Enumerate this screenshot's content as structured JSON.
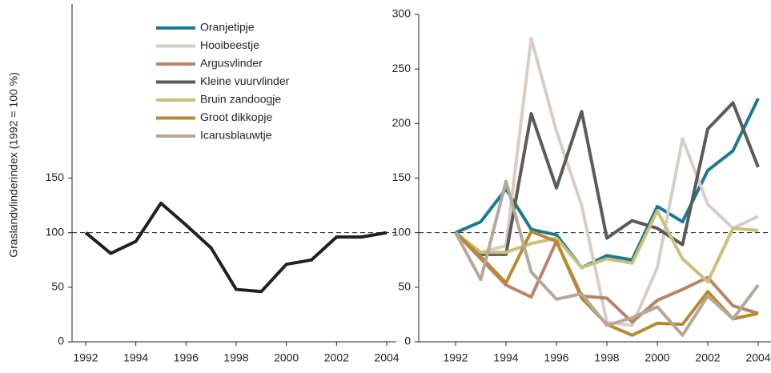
{
  "chart_data": [
    {
      "type": "line",
      "y_label": "Graslandvlinderindex (1992 = 100 %)",
      "x": [
        1992,
        1993,
        1994,
        1995,
        1996,
        1997,
        1998,
        1999,
        2000,
        2001,
        2002,
        2003,
        2004
      ],
      "series": [
        {
          "color": "#231f20",
          "values": [
            100,
            81,
            92,
            127,
            107,
            86,
            48,
            46,
            71,
            75,
            96,
            96,
            100
          ]
        }
      ],
      "xlim": [
        1992,
        2004
      ],
      "xticks": [
        1992,
        1994,
        1996,
        1998,
        2000,
        2002,
        2004
      ],
      "ylim": [
        0,
        300
      ],
      "yticks": [
        0,
        50,
        100,
        150
      ],
      "reference_line": 100
    },
    {
      "type": "line",
      "x": [
        1992,
        1993,
        1994,
        1995,
        1996,
        1997,
        1998,
        1999,
        2000,
        2001,
        2002,
        2003,
        2004
      ],
      "series": [
        {
          "name": "Oranjetipje",
          "color": "#1a7a93",
          "values": [
            100,
            110,
            140,
            103,
            98,
            68,
            79,
            75,
            124,
            110,
            157,
            175,
            223
          ]
        },
        {
          "name": "Hooibeestje",
          "color": "#d8ccc7",
          "values": [
            100,
            82,
            88,
            278,
            193,
            125,
            18,
            15,
            68,
            186,
            126,
            104,
            115
          ]
        },
        {
          "name": "Argusvlinder",
          "color": "#b98366",
          "values": [
            100,
            76,
            52,
            41,
            92,
            42,
            40,
            18,
            38,
            48,
            59,
            33,
            26
          ]
        },
        {
          "name": "Kleine vuurvlinder",
          "color": "#5a5a58",
          "values": [
            100,
            80,
            80,
            209,
            141,
            211,
            95,
            111,
            104,
            89,
            195,
            219,
            160
          ]
        },
        {
          "name": "Bruin zandoogje",
          "color": "#c9c07a",
          "values": [
            100,
            82,
            82,
            90,
            95,
            68,
            76,
            72,
            120,
            76,
            55,
            104,
            102
          ]
        },
        {
          "name": "Groot dikkopje",
          "color": "#b8892e",
          "values": [
            100,
            78,
            54,
            101,
            92,
            40,
            16,
            6,
            17,
            16,
            46,
            21,
            26
          ]
        },
        {
          "name": "Icarusblauwtje",
          "color": "#b4a898",
          "values": [
            100,
            57,
            147,
            64,
            39,
            44,
            15,
            22,
            32,
            6,
            42,
            21,
            52
          ]
        }
      ],
      "xlim": [
        1992,
        2004
      ],
      "xticks": [
        1992,
        1994,
        1996,
        1998,
        2000,
        2002,
        2004
      ],
      "ylim": [
        0,
        300
      ],
      "yticks": [
        0,
        50,
        100,
        150,
        200,
        250,
        300
      ],
      "reference_line": 100
    }
  ]
}
